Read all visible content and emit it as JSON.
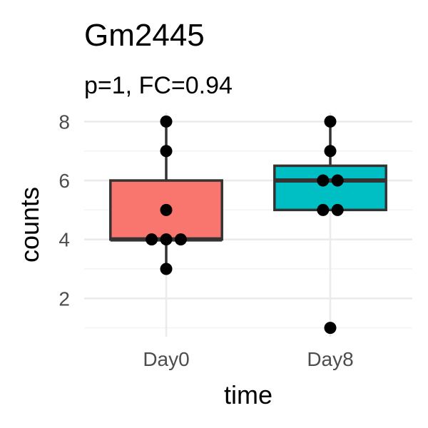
{
  "chart_data": {
    "type": "boxplot",
    "title": "Gm2445",
    "subtitle": "p=1, FC=0.94",
    "xlabel": "time",
    "ylabel": "counts",
    "categories": [
      "Day0",
      "Day8"
    ],
    "ylim": [
      0.7,
      8.3
    ],
    "yticks": [
      2,
      4,
      6,
      8
    ],
    "grid": true,
    "colors": [
      "#F8766D",
      "#00BFC4"
    ],
    "boxes": [
      {
        "category": "Day0",
        "lower_whisker": 3,
        "q1": 4,
        "median": 4,
        "q3": 6,
        "upper_whisker": 8
      },
      {
        "category": "Day8",
        "lower_whisker": 5,
        "q1": 5,
        "median": 6,
        "q3": 6.5,
        "upper_whisker": 8
      }
    ],
    "points": [
      {
        "category": "Day0",
        "values": [
          8,
          7,
          5,
          4,
          4,
          4,
          3
        ]
      },
      {
        "category": "Day8",
        "values": [
          8,
          7,
          6,
          6,
          5,
          5,
          1
        ]
      }
    ]
  }
}
